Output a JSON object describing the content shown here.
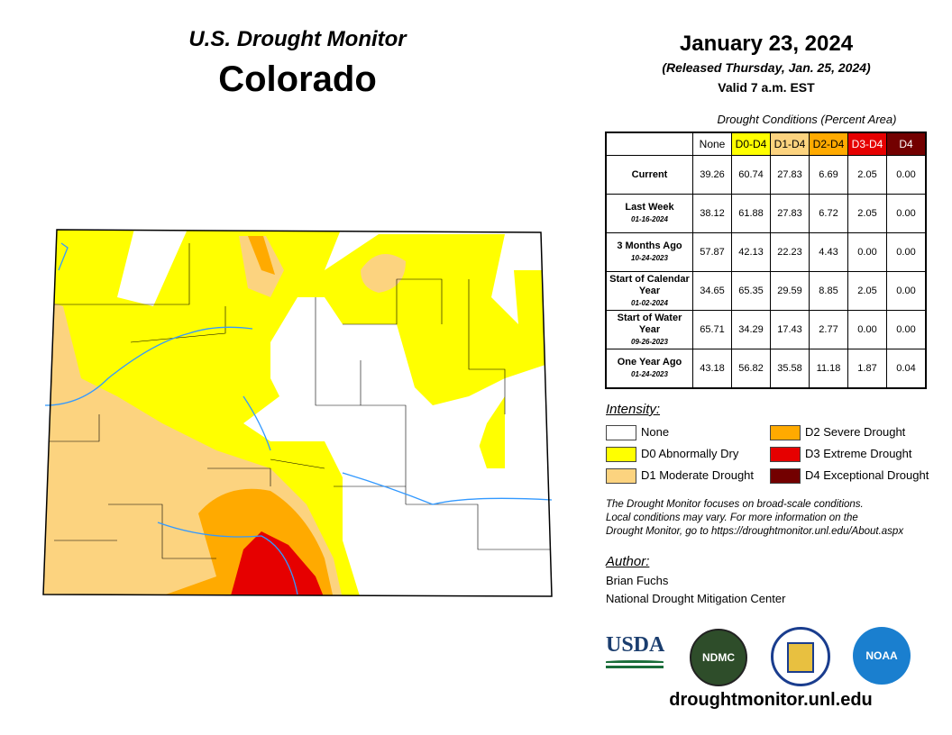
{
  "header": {
    "title": "U.S. Drought Monitor",
    "state": "Colorado",
    "date": "January 23, 2024",
    "released": "(Released Thursday, Jan. 25, 2024)",
    "valid": "Valid 7 a.m. EST"
  },
  "table": {
    "caption": "Drought Conditions (Percent Area)",
    "columns": [
      "None",
      "D0-D4",
      "D1-D4",
      "D2-D4",
      "D3-D4",
      "D4"
    ],
    "column_colors": [
      "#ffffff",
      "#ffff00",
      "#fcd37f",
      "#ffaa00",
      "#e60000",
      "#730000"
    ],
    "rows": [
      {
        "label": "Current",
        "date": "",
        "values": [
          "39.26",
          "60.74",
          "27.83",
          "6.69",
          "2.05",
          "0.00"
        ]
      },
      {
        "label": "Last Week",
        "date": "01-16-2024",
        "values": [
          "38.12",
          "61.88",
          "27.83",
          "6.72",
          "2.05",
          "0.00"
        ]
      },
      {
        "label": "3 Months Ago",
        "date": "10-24-2023",
        "values": [
          "57.87",
          "42.13",
          "22.23",
          "4.43",
          "0.00",
          "0.00"
        ]
      },
      {
        "label": "Start of Calendar Year",
        "date": "01-02-2024",
        "values": [
          "34.65",
          "65.35",
          "29.59",
          "8.85",
          "2.05",
          "0.00"
        ]
      },
      {
        "label": "Start of Water Year",
        "date": "09-26-2023",
        "values": [
          "65.71",
          "34.29",
          "17.43",
          "2.77",
          "0.00",
          "0.00"
        ]
      },
      {
        "label": "One Year Ago",
        "date": "01-24-2023",
        "values": [
          "43.18",
          "56.82",
          "35.58",
          "11.18",
          "1.87",
          "0.04"
        ]
      }
    ]
  },
  "legend": {
    "title": "Intensity:",
    "items": [
      {
        "label": "None",
        "color": "#ffffff"
      },
      {
        "label": "D0 Abnormally Dry",
        "color": "#ffff00"
      },
      {
        "label": "D1 Moderate Drought",
        "color": "#fcd37f"
      },
      {
        "label": "D2 Severe Drought",
        "color": "#ffaa00"
      },
      {
        "label": "D3 Extreme Drought",
        "color": "#e60000"
      },
      {
        "label": "D4 Exceptional Drought",
        "color": "#730000"
      }
    ]
  },
  "note": [
    "The Drought Monitor focuses on broad-scale conditions.",
    "Local conditions may vary. For more information on the",
    "Drought Monitor, go to https://droughtmonitor.unl.edu/About.aspx"
  ],
  "author": {
    "title": "Author:",
    "name": "Brian Fuchs",
    "org": "National Drought Mitigation Center"
  },
  "logos": {
    "usda": "USDA",
    "ndmc": "NDMC",
    "commerce": "",
    "noaa": "NOAA"
  },
  "url": "droughtmonitor.unl.edu",
  "map": {
    "river_color": "#3399ff"
  }
}
